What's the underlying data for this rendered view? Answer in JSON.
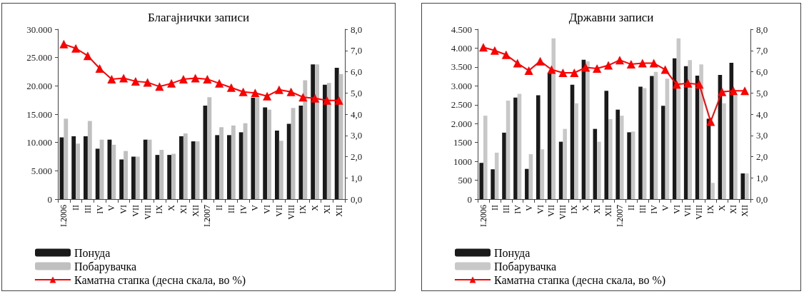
{
  "chart_data": [
    {
      "type": "bar",
      "title": "Благајнички записи",
      "categories": [
        "I.2006",
        "II",
        "III",
        "IV",
        "V",
        "VI",
        "VII",
        "VIII",
        "IX",
        "X",
        "XI",
        "XII",
        "I.2007",
        "II",
        "III",
        "IV",
        "V",
        "VI",
        "VII",
        "VIII",
        "IX",
        "X",
        "XI",
        "XII"
      ],
      "series": [
        {
          "name": "Понуда",
          "color": "#1a1a1a",
          "values": [
            10900,
            11100,
            11100,
            8900,
            10500,
            7000,
            7500,
            10500,
            7800,
            7800,
            11100,
            10200,
            16500,
            11300,
            11300,
            11800,
            17900,
            16200,
            12100,
            13300,
            16500,
            23800,
            20200,
            23200
          ]
        },
        {
          "name": "Побарувачка",
          "color": "#c0c0c0",
          "values": [
            14200,
            9800,
            13800,
            10500,
            9600,
            8500,
            7500,
            10500,
            8700,
            8000,
            11600,
            10200,
            18000,
            12700,
            13000,
            13400,
            17900,
            15800,
            10300,
            16100,
            21000,
            23800,
            20500,
            22100
          ]
        },
        {
          "name": "Каматна стапка (десна скала, во %)",
          "type": "line",
          "axis": "y2",
          "color": "#ff0000",
          "marker": "triangle",
          "values": [
            7.3,
            7.1,
            6.75,
            6.15,
            5.65,
            5.7,
            5.55,
            5.5,
            5.3,
            5.45,
            5.65,
            5.7,
            5.65,
            5.45,
            5.25,
            5.05,
            5.0,
            4.85,
            5.15,
            5.05,
            4.8,
            4.75,
            4.65,
            4.65
          ]
        }
      ],
      "ylim": [
        0,
        30000
      ],
      "yticks": [
        0,
        {
          "value": 5000,
          "label": "5.000"
        },
        {
          "value": 10000,
          "label": "10.000"
        },
        {
          "value": 15000,
          "label": "15.000"
        },
        {
          "value": 20000,
          "label": "20.000"
        },
        {
          "value": 25000,
          "label": "25.000"
        },
        {
          "value": 30000,
          "label": "30.000"
        }
      ],
      "y2lim": [
        0,
        8
      ],
      "y2ticks": [
        {
          "value": 0,
          "label": "0,0"
        },
        {
          "value": 1,
          "label": "1,0"
        },
        {
          "value": 2,
          "label": "2,0"
        },
        {
          "value": 3,
          "label": "3,0"
        },
        {
          "value": 4,
          "label": "4,0"
        },
        {
          "value": 5,
          "label": "5,0"
        },
        {
          "value": 6,
          "label": "6,0"
        },
        {
          "value": 7,
          "label": "7,0"
        },
        {
          "value": 8,
          "label": "8,0"
        }
      ],
      "grid": false,
      "legend": "bottom left"
    },
    {
      "type": "bar",
      "title": "Државни записи",
      "categories": [
        "I.2006",
        "II",
        "III",
        "IV",
        "V",
        "VI",
        "VII",
        "VIII",
        "IX",
        "X",
        "XI",
        "XII",
        "I.2007",
        "II",
        "III",
        "IV",
        "V",
        "VI",
        "VII",
        "VIII",
        "IX",
        "X",
        "XI",
        "XII"
      ],
      "series": [
        {
          "name": "Понуда",
          "color": "#1a1a1a",
          "values": [
            960,
            790,
            1760,
            2690,
            800,
            2750,
            3350,
            1520,
            3030,
            3690,
            1860,
            2870,
            2370,
            1770,
            2980,
            3260,
            2470,
            3730,
            3520,
            3270,
            2130,
            3290,
            3610,
            680
          ]
        },
        {
          "name": "Побарувачка",
          "color": "#c8c8c8",
          "values": [
            2210,
            1230,
            2610,
            2790,
            1190,
            1320,
            4260,
            1860,
            2540,
            3650,
            1520,
            2120,
            2210,
            1790,
            2940,
            3370,
            3190,
            4260,
            3680,
            3570,
            430,
            2540,
            2750,
            680
          ]
        },
        {
          "name": "Каматна стапка (десна скала, во %)",
          "type": "line",
          "axis": "y2",
          "color": "#ff0000",
          "marker": "triangle",
          "values": [
            7.15,
            7.0,
            6.8,
            6.4,
            6.05,
            6.5,
            6.1,
            5.95,
            5.95,
            6.2,
            6.15,
            6.3,
            6.55,
            6.35,
            6.4,
            6.4,
            6.1,
            5.4,
            5.45,
            5.4,
            3.65,
            5.05,
            5.1,
            5.1
          ]
        }
      ],
      "ylim": [
        0,
        4500
      ],
      "yticks": [
        0,
        500,
        1000,
        1500,
        {
          "value": 2000,
          "label": "2.000"
        },
        {
          "value": 2500,
          "label": "2.500"
        },
        {
          "value": 3000,
          "label": "3.000"
        },
        {
          "value": 3500,
          "label": "3.500"
        },
        {
          "value": 4000,
          "label": "4.000"
        },
        {
          "value": 4500,
          "label": "4.500"
        }
      ],
      "y2lim": [
        0,
        8
      ],
      "y2ticks": [
        {
          "value": 0,
          "label": "0,0"
        },
        {
          "value": 1,
          "label": "1,0"
        },
        {
          "value": 2,
          "label": "2,0"
        },
        {
          "value": 3,
          "label": "3,0"
        },
        {
          "value": 4,
          "label": "4,0"
        },
        {
          "value": 5,
          "label": "5,0"
        },
        {
          "value": 6,
          "label": "6,0"
        },
        {
          "value": 7,
          "label": "7,0"
        },
        {
          "value": 8,
          "label": "8,0"
        }
      ],
      "grid": false,
      "legend": "bottom left"
    }
  ]
}
